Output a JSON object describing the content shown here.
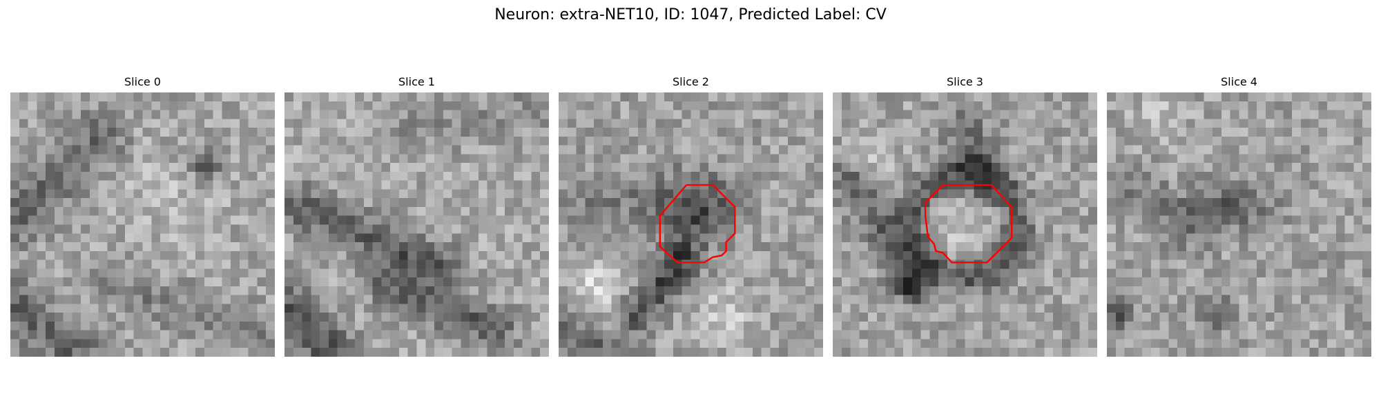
{
  "figure": {
    "title": "Neuron: extra-NET10, ID: 1047, Predicted Label: CV"
  },
  "panels": [
    {
      "title": "Slice 0",
      "has_contour": false
    },
    {
      "title": "Slice 1",
      "has_contour": false
    },
    {
      "title": "Slice 2",
      "has_contour": true
    },
    {
      "title": "Slice 3",
      "has_contour": true
    },
    {
      "title": "Slice 4",
      "has_contour": false
    }
  ],
  "colors": {
    "contour": "#ff0000",
    "background": "#ffffff",
    "text": "#000000"
  }
}
